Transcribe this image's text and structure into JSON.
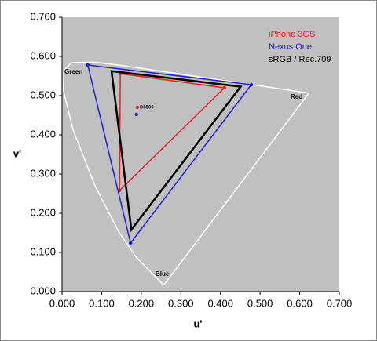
{
  "chart_data": {
    "type": "line",
    "xlabel": "u'",
    "ylabel": "v'",
    "xlim": [
      0,
      0.7
    ],
    "ylim": [
      0,
      0.7
    ],
    "xticks": [
      {
        "value": 0,
        "label": "0.000"
      },
      {
        "value": 0.1,
        "label": "0.100"
      },
      {
        "value": 0.2,
        "label": "0.200"
      },
      {
        "value": 0.3,
        "label": "0.300"
      },
      {
        "value": 0.4,
        "label": "0.400"
      },
      {
        "value": 0.5,
        "label": "0.500"
      },
      {
        "value": 0.6,
        "label": "0.600"
      },
      {
        "value": 0.7,
        "label": "0.700"
      }
    ],
    "yticks": [
      {
        "value": 0,
        "label": "0.000"
      },
      {
        "value": 0.1,
        "label": "0.100"
      },
      {
        "value": 0.2,
        "label": "0.200"
      },
      {
        "value": 0.3,
        "label": "0.300"
      },
      {
        "value": 0.4,
        "label": "0.400"
      },
      {
        "value": 0.5,
        "label": "0.500"
      },
      {
        "value": 0.6,
        "label": "0.600"
      },
      {
        "value": 0.7,
        "label": "0.700"
      }
    ],
    "legend": "upper right",
    "locus": {
      "color": "#ffffff",
      "x": [
        0.2568,
        0.1877,
        0.1441,
        0.0828,
        0.0282,
        0.0035,
        0.0046,
        0.0231,
        0.0792,
        0.1531,
        0.2623,
        0.4035,
        0.5202,
        0.6233,
        0.2568
      ],
      "y": [
        0.0166,
        0.0871,
        0.151,
        0.2709,
        0.4117,
        0.513,
        0.5639,
        0.5837,
        0.5856,
        0.5766,
        0.5605,
        0.5393,
        0.5219,
        0.5064,
        0.0166
      ]
    },
    "series": [
      {
        "name": "iPhone 3GS",
        "color": "#e02020",
        "x": [
          0.147,
          0.41,
          0.145
        ],
        "y": [
          0.556,
          0.52,
          0.258
        ],
        "white_point": [
          0.19,
          0.47
        ]
      },
      {
        "name": "Nexus One",
        "color": "#1f1fd0",
        "x": [
          0.065,
          0.478,
          0.173
        ],
        "y": [
          0.578,
          0.528,
          0.124
        ],
        "white_point": [
          0.188,
          0.452
        ]
      },
      {
        "name": "sRGB / Rec.709",
        "color": "#000000",
        "x": [
          0.125,
          0.451,
          0.175
        ],
        "y": [
          0.5625,
          0.523,
          0.158
        ]
      }
    ],
    "annotations": [
      "Green",
      "Red",
      "Blue",
      "D6500"
    ]
  }
}
